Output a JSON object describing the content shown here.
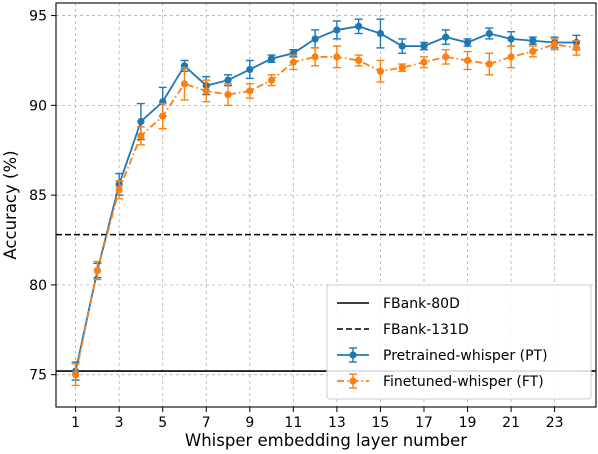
{
  "chart_data": {
    "type": "line",
    "title": "",
    "xlabel": "Whisper embedding layer number",
    "ylabel": "Accuracy (%)",
    "xlim": [
      0.1,
      24.9
    ],
    "ylim": [
      73.2,
      95.7
    ],
    "xticks": [
      1,
      3,
      5,
      7,
      9,
      11,
      13,
      15,
      17,
      19,
      21,
      23
    ],
    "yticks": [
      75,
      80,
      85,
      90,
      95
    ],
    "grid": true,
    "legend_position": "lower-right",
    "x": [
      1,
      2,
      3,
      4,
      5,
      6,
      7,
      8,
      9,
      10,
      11,
      12,
      13,
      14,
      15,
      16,
      17,
      18,
      19,
      20,
      21,
      22,
      23,
      24
    ],
    "series": [
      {
        "name": "Pretrained-whisper (PT)",
        "color": "#1f77b4",
        "style": "solid",
        "values": [
          75.2,
          80.8,
          85.6,
          89.1,
          90.2,
          92.2,
          91.1,
          91.4,
          92.0,
          92.6,
          92.9,
          93.7,
          94.2,
          94.4,
          94.0,
          93.3,
          93.3,
          93.8,
          93.5,
          94.0,
          93.7,
          93.6,
          93.5,
          93.5
        ],
        "errors": [
          0.5,
          0.4,
          0.6,
          1.0,
          0.8,
          0.3,
          0.5,
          0.3,
          0.5,
          0.2,
          0.2,
          0.5,
          0.5,
          0.4,
          0.8,
          0.4,
          0.2,
          0.4,
          0.2,
          0.3,
          0.4,
          0.2,
          0.3,
          0.4
        ]
      },
      {
        "name": "Finetuned-whisper (FT)",
        "color": "#ff7f0e",
        "style": "dashdot",
        "values": [
          75.0,
          80.8,
          85.3,
          88.3,
          89.4,
          91.2,
          90.8,
          90.6,
          90.8,
          91.4,
          92.4,
          92.7,
          92.7,
          92.5,
          91.9,
          92.1,
          92.4,
          92.7,
          92.5,
          92.3,
          92.7,
          93.0,
          93.4,
          93.2
        ],
        "errors": [
          0.6,
          0.5,
          0.5,
          0.5,
          0.7,
          0.9,
          0.6,
          0.6,
          0.4,
          0.3,
          0.4,
          0.5,
          0.6,
          0.3,
          0.6,
          0.2,
          0.3,
          0.4,
          0.5,
          0.6,
          0.6,
          0.3,
          0.3,
          0.4
        ]
      }
    ],
    "baselines": [
      {
        "name": "FBank-80D",
        "value": 75.2,
        "style": "solid",
        "color": "#000000"
      },
      {
        "name": "FBank-131D",
        "value": 82.8,
        "style": "dashed",
        "color": "#000000"
      }
    ]
  }
}
